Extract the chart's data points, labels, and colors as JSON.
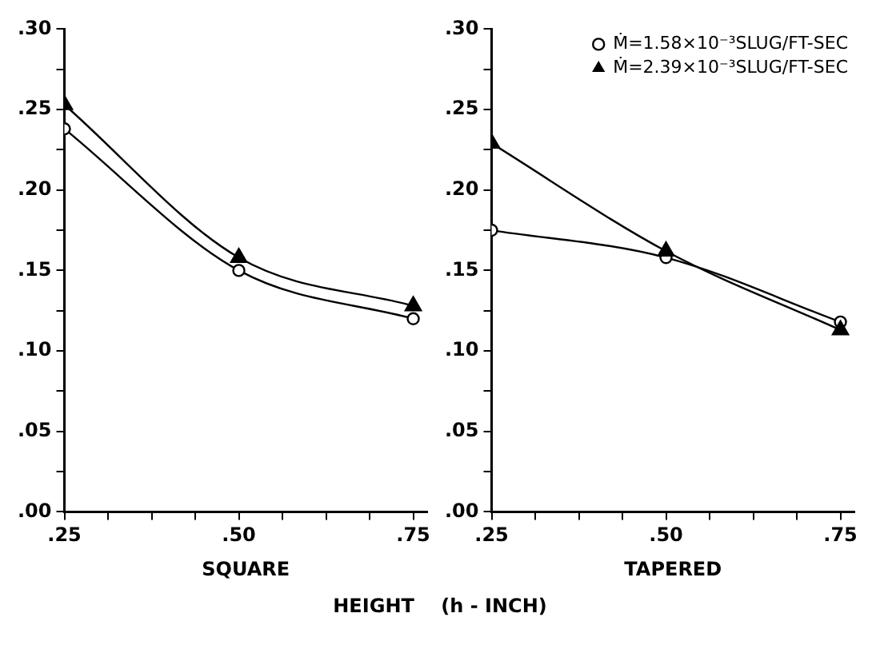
{
  "chart_data": [
    {
      "type": "line",
      "xlabel": "SQUARE",
      "x": [
        0.25,
        0.5,
        0.75
      ],
      "legend": false,
      "grid": false,
      "line_style": "solid",
      "annotations": [
        "HEIGHT    (h - INCH)"
      ],
      "series": [
        {
          "color": "#000000",
          "marker": "circle",
          "values": [
            0.238,
            0.15,
            0.12
          ]
        },
        {
          "color": "#000000",
          "marker": "triangle",
          "values": [
            0.253,
            0.158,
            0.128
          ]
        }
      ],
      "xlim": [
        0.25,
        0.77
      ],
      "xticks": [
        {
          "value": 0.25,
          "label": ".25"
        },
        {
          "value": 0.3125,
          "label": null
        },
        {
          "value": 0.375,
          "label": null
        },
        {
          "value": 0.4375,
          "label": null
        },
        {
          "value": 0.5,
          "label": ".50"
        },
        {
          "value": 0.5625,
          "label": null
        },
        {
          "value": 0.625,
          "label": null
        },
        {
          "value": 0.6875,
          "label": null
        },
        {
          "value": 0.75,
          "label": ".75"
        }
      ],
      "ylim": [
        0,
        0.3
      ],
      "yticks": [
        {
          "value": 0,
          "label": ".00"
        },
        {
          "value": 0.025,
          "label": null
        },
        {
          "value": 0.05,
          "label": ".05"
        },
        {
          "value": 0.075,
          "label": null
        },
        {
          "value": 0.1,
          "label": ".10"
        },
        {
          "value": 0.125,
          "label": null
        },
        {
          "value": 0.15,
          "label": ".15"
        },
        {
          "value": 0.175,
          "label": null
        },
        {
          "value": 0.2,
          "label": ".20"
        },
        {
          "value": 0.225,
          "label": null
        },
        {
          "value": 0.25,
          "label": ".25"
        },
        {
          "value": 0.275,
          "label": null
        },
        {
          "value": 0.3,
          "label": ".30"
        }
      ]
    },
    {
      "type": "line",
      "xlabel": "TAPERED",
      "x": [
        0.25,
        0.5,
        0.75
      ],
      "legend": "top right",
      "grid": false,
      "line_style": "solid",
      "series": [
        {
          "name": "Ṁ=1.58×10⁻³SLUG/FT-SEC",
          "color": "#000000",
          "marker": "circle",
          "values": [
            0.175,
            0.158,
            0.118
          ]
        },
        {
          "name": "Ṁ=2.39×10⁻³SLUG/FT-SEC",
          "color": "#000000",
          "marker": "triangle",
          "values": [
            0.229,
            0.162,
            0.113
          ]
        }
      ],
      "xlim": [
        0.25,
        0.77
      ],
      "xticks": [
        {
          "value": 0.25,
          "label": ".25"
        },
        {
          "value": 0.3125,
          "label": null
        },
        {
          "value": 0.375,
          "label": null
        },
        {
          "value": 0.4375,
          "label": null
        },
        {
          "value": 0.5,
          "label": ".50"
        },
        {
          "value": 0.5625,
          "label": null
        },
        {
          "value": 0.625,
          "label": null
        },
        {
          "value": 0.6875,
          "label": null
        },
        {
          "value": 0.75,
          "label": ".75"
        }
      ],
      "ylim": [
        0,
        0.3
      ],
      "yticks": [
        {
          "value": 0,
          "label": ".00"
        },
        {
          "value": 0.025,
          "label": null
        },
        {
          "value": 0.05,
          "label": ".05"
        },
        {
          "value": 0.075,
          "label": null
        },
        {
          "value": 0.1,
          "label": ".10"
        },
        {
          "value": 0.125,
          "label": null
        },
        {
          "value": 0.15,
          "label": ".15"
        },
        {
          "value": 0.175,
          "label": null
        },
        {
          "value": 0.2,
          "label": ".20"
        },
        {
          "value": 0.225,
          "label": null
        },
        {
          "value": 0.25,
          "label": ".25"
        },
        {
          "value": 0.275,
          "label": null
        },
        {
          "value": 0.3,
          "label": ".30"
        }
      ]
    }
  ]
}
